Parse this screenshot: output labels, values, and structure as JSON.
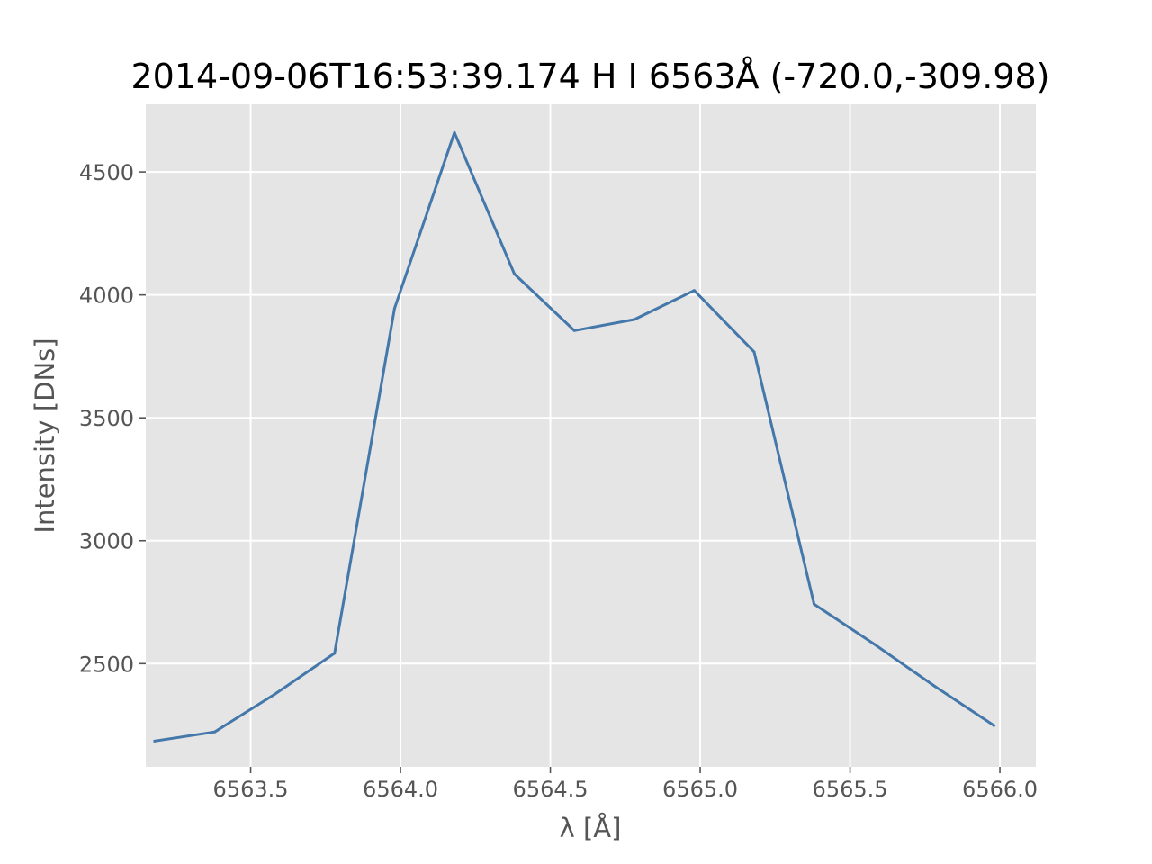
{
  "chart_data": {
    "type": "line",
    "title": "2014-09-06T16:53:39.174 H I 6563Å (-720.0,-309.98)",
    "xlabel": "λ [Å]",
    "ylabel": "Intensity [DNs]",
    "xlim": [
      6563.15,
      6566.12
    ],
    "ylim": [
      2080,
      4775
    ],
    "xticks": [
      6563.5,
      6564.0,
      6564.5,
      6565.0,
      6565.5,
      6566.0
    ],
    "xtick_labels": [
      "6563.5",
      "6564.0",
      "6564.5",
      "6565.0",
      "6565.5",
      "6566.0"
    ],
    "yticks": [
      2500,
      3000,
      3500,
      4000,
      4500
    ],
    "ytick_labels": [
      "2500",
      "3000",
      "3500",
      "4000",
      "4500"
    ],
    "grid": true,
    "background_color": "#e5e5e5",
    "line_color": "#4477aa",
    "series": [
      {
        "x": [
          6563.18,
          6563.38,
          6563.58,
          6563.78,
          6563.98,
          6564.18,
          6564.38,
          6564.58,
          6564.78,
          6564.98,
          6565.18,
          6565.38,
          6565.58,
          6565.78,
          6565.98
        ],
        "values": [
          2185,
          2222,
          2375,
          2542,
          3945,
          4660,
          4085,
          3855,
          3900,
          4018,
          3768,
          2742,
          2580,
          2410,
          2248
        ]
      }
    ]
  }
}
